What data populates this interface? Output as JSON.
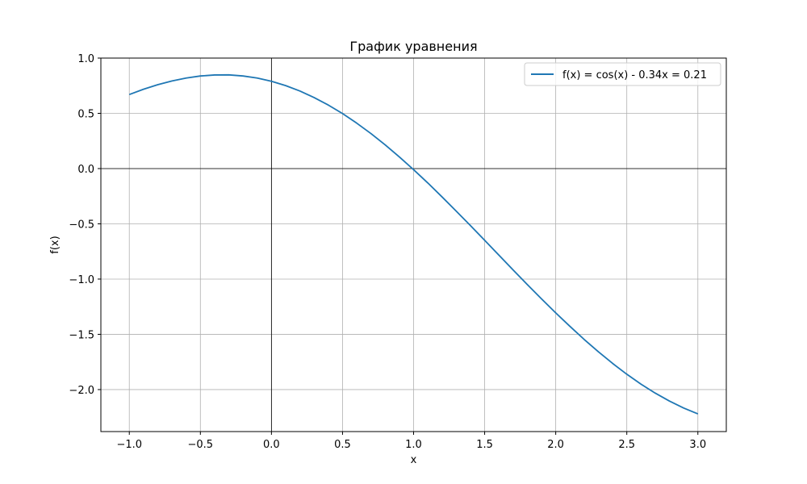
{
  "chart_data": {
    "type": "line",
    "title": "График уравнения",
    "xlabel": "x",
    "ylabel": "f(x)",
    "xlim": [
      -1.2,
      3.2
    ],
    "ylim": [
      -2.38,
      1.0
    ],
    "xticks": [
      -1.0,
      -0.5,
      0.0,
      0.5,
      1.0,
      1.5,
      2.0,
      2.5,
      3.0
    ],
    "xtick_labels": [
      "−1.0",
      "−0.5",
      "0.0",
      "0.5",
      "1.0",
      "1.5",
      "2.0",
      "2.5",
      "3.0"
    ],
    "yticks": [
      -2.0,
      -1.5,
      -1.0,
      -0.5,
      0.0,
      0.5,
      1.0
    ],
    "ytick_labels": [
      "−2.0",
      "−1.5",
      "−1.0",
      "−0.5",
      "0.0",
      "0.5",
      "1.0"
    ],
    "grid": true,
    "zero_lines": true,
    "legend_position": "top-right",
    "series": [
      {
        "name": "f(x) = cos(x) - 0.34x = 0.21",
        "color": "#1f77b4",
        "x": [
          -1.0,
          -0.9,
          -0.8,
          -0.7,
          -0.6,
          -0.5,
          -0.4,
          -0.3,
          -0.2,
          -0.1,
          0.0,
          0.1,
          0.2,
          0.3,
          0.4,
          0.5,
          0.6,
          0.7,
          0.8,
          0.9,
          1.0,
          1.1,
          1.2,
          1.3,
          1.4,
          1.5,
          1.6,
          1.7,
          1.8,
          1.9,
          2.0,
          2.1,
          2.2,
          2.3,
          2.4,
          2.5,
          2.6,
          2.7,
          2.8,
          2.9,
          3.0
        ],
        "y": [
          0.67,
          0.718,
          0.759,
          0.793,
          0.819,
          0.838,
          0.847,
          0.848,
          0.838,
          0.819,
          0.79,
          0.751,
          0.702,
          0.643,
          0.575,
          0.498,
          0.411,
          0.317,
          0.215,
          0.105,
          -0.01,
          -0.13,
          -0.256,
          -0.385,
          -0.516,
          -0.649,
          -0.783,
          -0.917,
          -1.05,
          -1.179,
          -1.306,
          -1.428,
          -1.546,
          -1.658,
          -1.763,
          -1.861,
          -1.951,
          -2.032,
          -2.104,
          -2.167,
          -2.22
        ]
      }
    ]
  }
}
